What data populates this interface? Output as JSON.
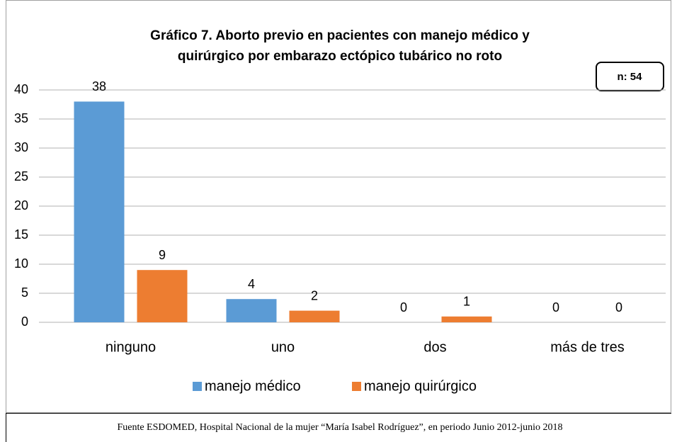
{
  "chart_data": {
    "type": "bar",
    "title": [
      "Gráfico 7. Aborto previo en pacientes con manejo médico y",
      "quirúrgico por embarazo ectópico tubárico no roto"
    ],
    "annotation": "n: 54",
    "categories": [
      "ninguno",
      "uno",
      "dos",
      "más de tres"
    ],
    "series": [
      {
        "name": "manejo médico",
        "color": "#5b9bd5",
        "values": [
          38,
          4,
          0,
          0
        ]
      },
      {
        "name": "manejo quirúrgico",
        "color": "#ed7d31",
        "values": [
          9,
          2,
          1,
          0
        ]
      }
    ],
    "ylim": [
      0,
      40
    ],
    "yticks": [
      0,
      5,
      10,
      15,
      20,
      25,
      30,
      35,
      40
    ],
    "grid": true,
    "legend": "bottom",
    "source": "Fuente ESDOMED, Hospital Nacional de la mujer “María Isabel Rodríguez”, en periodo Junio 2012-junio 2018"
  }
}
